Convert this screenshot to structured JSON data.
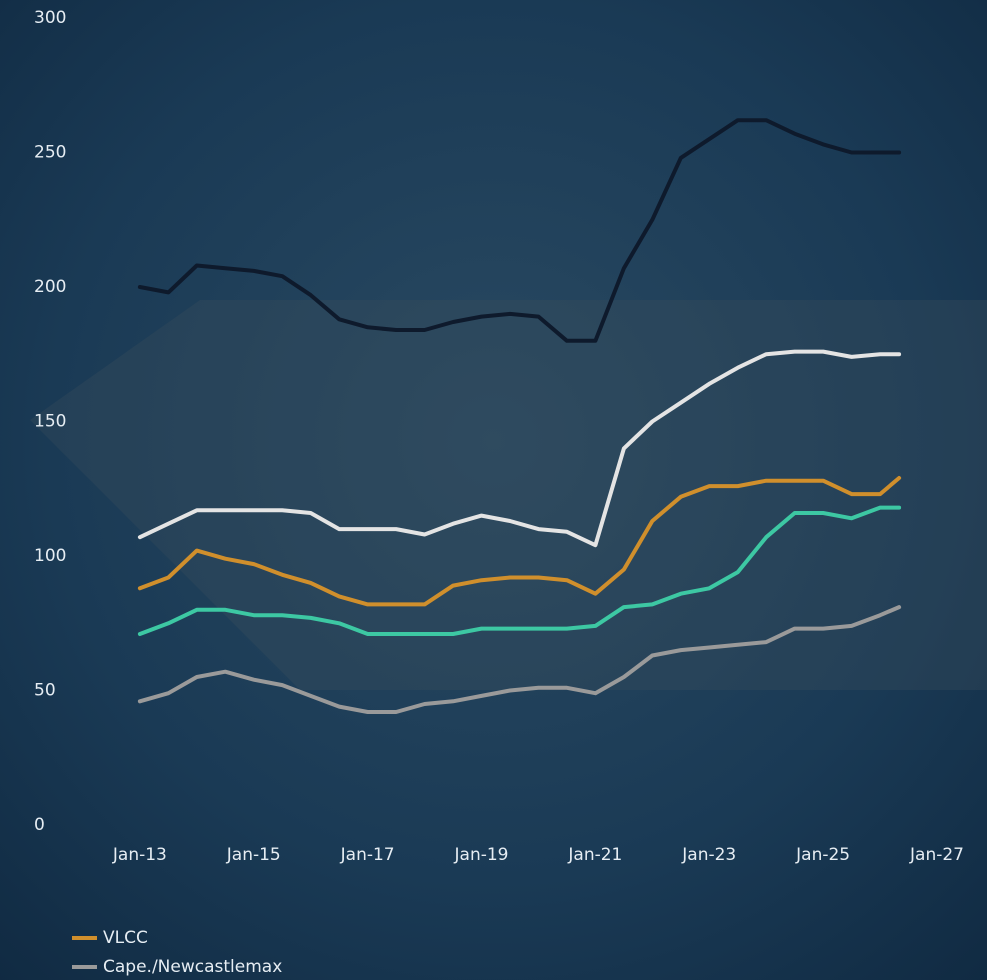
{
  "chart_data": {
    "type": "line",
    "x": [
      "2013-01",
      "2013-07",
      "2014-01",
      "2014-07",
      "2015-01",
      "2015-07",
      "2016-01",
      "2016-07",
      "2017-01",
      "2017-07",
      "2018-01",
      "2018-07",
      "2019-01",
      "2019-07",
      "2020-01",
      "2020-07",
      "2021-01",
      "2021-07",
      "2022-01",
      "2022-07",
      "2023-01",
      "2023-07",
      "2024-01",
      "2024-07",
      "2025-01",
      "2025-07",
      "2026-01",
      "2026-05"
    ],
    "series": [
      {
        "color": "#0e1a2c",
        "values": [
          200,
          198,
          208,
          207,
          206,
          204,
          197,
          188,
          185,
          184,
          184,
          187,
          189,
          190,
          189,
          180,
          180,
          207,
          225,
          248,
          255,
          262,
          262,
          257,
          253,
          250,
          250,
          250
        ]
      },
      {
        "color": "#e4e4e4",
        "values": [
          107,
          112,
          117,
          117,
          117,
          117,
          116,
          110,
          110,
          110,
          108,
          112,
          115,
          113,
          110,
          109,
          104,
          140,
          150,
          157,
          164,
          170,
          175,
          176,
          176,
          174,
          175,
          175
        ]
      },
      {
        "name": "VLCC",
        "color": "#d08f2c",
        "values": [
          88,
          92,
          102,
          99,
          97,
          93,
          90,
          85,
          82,
          82,
          82,
          89,
          91,
          92,
          92,
          91,
          86,
          95,
          113,
          122,
          126,
          126,
          128,
          128,
          128,
          123,
          123,
          129
        ]
      },
      {
        "color": "#3dc8a3",
        "values": [
          71,
          75,
          80,
          80,
          78,
          78,
          77,
          75,
          71,
          71,
          71,
          71,
          73,
          73,
          73,
          73,
          74,
          81,
          82,
          86,
          88,
          94,
          107,
          116,
          116,
          114,
          118,
          118
        ]
      },
      {
        "name": "Cape./Newcastlemax",
        "color": "#9a9a9a",
        "values": [
          46,
          49,
          55,
          57,
          54,
          52,
          48,
          44,
          42,
          42,
          45,
          46,
          48,
          50,
          51,
          51,
          49,
          55,
          63,
          65,
          66,
          67,
          68,
          73,
          73,
          74,
          78,
          81
        ]
      }
    ],
    "xlim": [
      "2011-07",
      "2027-07"
    ],
    "xticks": [
      {
        "value": "2013-01",
        "label": "Jan-13"
      },
      {
        "value": "2015-01",
        "label": "Jan-15"
      },
      {
        "value": "2017-01",
        "label": "Jan-17"
      },
      {
        "value": "2019-01",
        "label": "Jan-19"
      },
      {
        "value": "2021-01",
        "label": "Jan-21"
      },
      {
        "value": "2023-01",
        "label": "Jan-23"
      },
      {
        "value": "2025-01",
        "label": "Jan-25"
      },
      {
        "value": "2027-01",
        "label": "Jan-27"
      }
    ],
    "ylim": [
      0,
      300
    ],
    "yticks": [
      0,
      50,
      100,
      150,
      200,
      250,
      300
    ],
    "grid": false
  }
}
